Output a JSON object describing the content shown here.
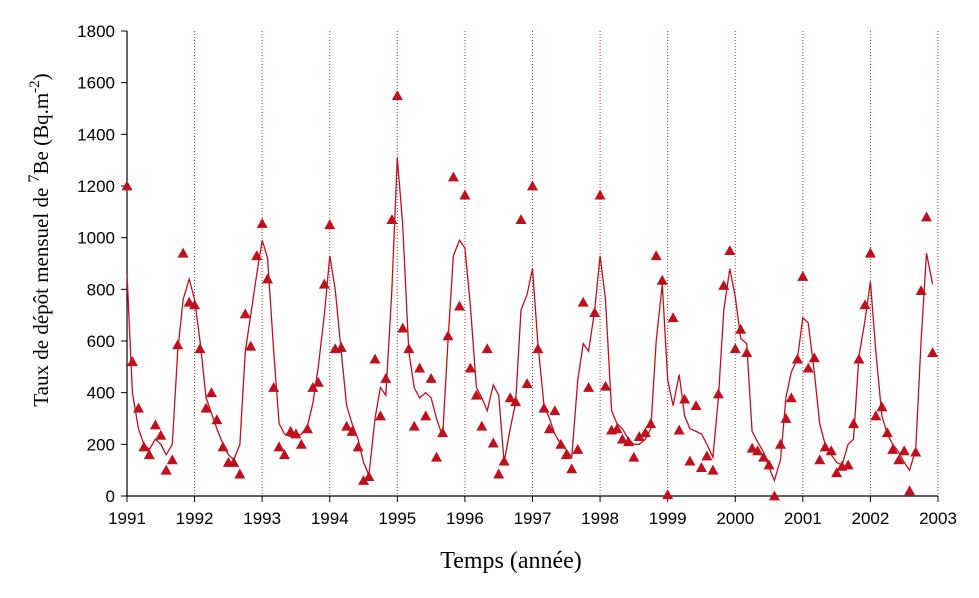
{
  "chart_data": {
    "type": "line",
    "title": "",
    "xlabel": "Temps (année)",
    "ylabel_prefix": "Taux de dépôt mensuel de ",
    "ylabel_sup": "7",
    "ylabel_main": "Be (Bq.m",
    "ylabel_exp": "-2",
    "ylabel_close": ")",
    "xlim": [
      1991,
      2003
    ],
    "ylim": [
      0,
      1800
    ],
    "x_ticks": [
      "1991",
      "1992",
      "1993",
      "1994",
      "1995",
      "1996",
      "1997",
      "1998",
      "1999",
      "2000",
      "2001",
      "2002",
      "2003"
    ],
    "y_ticks": [
      "0",
      "200",
      "400",
      "600",
      "800",
      "1000",
      "1200",
      "1400",
      "1600",
      "1800"
    ],
    "grid": "vertical dotted lines at each year",
    "legend": "none",
    "series": [
      {
        "kind": "markers",
        "marker": "triangle",
        "x": [
          1991.0,
          1991.08,
          1991.17,
          1991.25,
          1991.33,
          1991.42,
          1991.5,
          1991.58,
          1991.67,
          1991.75,
          1991.83,
          1991.92,
          1992.0,
          1992.08,
          1992.17,
          1992.25,
          1992.33,
          1992.42,
          1992.5,
          1992.58,
          1992.67,
          1992.75,
          1992.83,
          1992.92,
          1993.0,
          1993.08,
          1993.17,
          1993.25,
          1993.33,
          1993.42,
          1993.5,
          1993.58,
          1993.67,
          1993.75,
          1993.83,
          1993.92,
          1994.0,
          1994.08,
          1994.17,
          1994.25,
          1994.33,
          1994.42,
          1994.5,
          1994.58,
          1994.67,
          1994.75,
          1994.83,
          1994.92,
          1995.0,
          1995.08,
          1995.17,
          1995.25,
          1995.33,
          1995.42,
          1995.5,
          1995.58,
          1995.67,
          1995.75,
          1995.83,
          1995.92,
          1996.0,
          1996.08,
          1996.17,
          1996.25,
          1996.33,
          1996.42,
          1996.5,
          1996.58,
          1996.67,
          1996.75,
          1996.83,
          1996.92,
          1997.0,
          1997.08,
          1997.17,
          1997.25,
          1997.33,
          1997.42,
          1997.5,
          1997.58,
          1997.67,
          1997.75,
          1997.83,
          1997.92,
          1998.0,
          1998.08,
          1998.17,
          1998.25,
          1998.33,
          1998.42,
          1998.5,
          1998.58,
          1998.67,
          1998.75,
          1998.83,
          1998.92,
          1999.0,
          1999.08,
          1999.17,
          1999.25,
          1999.33,
          1999.42,
          1999.5,
          1999.58,
          1999.67,
          1999.75,
          1999.83,
          1999.92,
          2000.0,
          2000.08,
          2000.17,
          2000.25,
          2000.33,
          2000.42,
          2000.5,
          2000.58,
          2000.67,
          2000.75,
          2000.83,
          2000.92,
          2001.0,
          2001.08,
          2001.17,
          2001.25,
          2001.33,
          2001.42,
          2001.5,
          2001.58,
          2001.67,
          2001.75,
          2001.83,
          2001.92,
          2002.0,
          2002.08,
          2002.17,
          2002.25,
          2002.33,
          2002.42,
          2002.5,
          2002.58,
          2002.67,
          2002.75,
          2002.83,
          2002.92
        ],
        "y": [
          1200,
          520,
          340,
          190,
          160,
          275,
          235,
          100,
          140,
          585,
          940,
          750,
          740,
          570,
          340,
          400,
          295,
          190,
          130,
          130,
          85,
          705,
          580,
          930,
          1055,
          840,
          420,
          190,
          160,
          250,
          240,
          200,
          260,
          420,
          440,
          820,
          1050,
          570,
          575,
          270,
          250,
          190,
          60,
          75,
          530,
          310,
          455,
          1070,
          1550,
          650,
          570,
          270,
          495,
          310,
          455,
          150,
          245,
          620,
          1235,
          735,
          1165,
          495,
          390,
          270,
          570,
          205,
          85,
          135,
          380,
          365,
          1070,
          435,
          1200,
          570,
          340,
          260,
          330,
          200,
          160,
          105,
          180,
          750,
          420,
          710,
          1165,
          425,
          255,
          260,
          220,
          210,
          150,
          230,
          245,
          280,
          930,
          835,
          5,
          690,
          255,
          375,
          135,
          350,
          110,
          155,
          100,
          395,
          815,
          950,
          570,
          645,
          555,
          185,
          175,
          150,
          120,
          0,
          200,
          300,
          380,
          530,
          850,
          495,
          535,
          140,
          190,
          175,
          90,
          115,
          120,
          280,
          530,
          740,
          940,
          310,
          345,
          245,
          180,
          140,
          175,
          20,
          170,
          795,
          1080,
          555
        ]
      },
      {
        "kind": "line",
        "x": [
          1991.0,
          1991.08,
          1991.17,
          1991.25,
          1991.33,
          1991.42,
          1991.5,
          1991.58,
          1991.67,
          1991.75,
          1991.83,
          1991.92,
          1992.0,
          1992.08,
          1992.17,
          1992.25,
          1992.33,
          1992.42,
          1992.5,
          1992.58,
          1992.67,
          1992.75,
          1992.83,
          1992.92,
          1993.0,
          1993.08,
          1993.17,
          1993.25,
          1993.33,
          1993.42,
          1993.5,
          1993.58,
          1993.67,
          1993.75,
          1993.83,
          1993.92,
          1994.0,
          1994.08,
          1994.17,
          1994.25,
          1994.33,
          1994.42,
          1994.5,
          1994.58,
          1994.67,
          1994.75,
          1994.83,
          1994.92,
          1995.0,
          1995.08,
          1995.17,
          1995.25,
          1995.33,
          1995.42,
          1995.5,
          1995.58,
          1995.67,
          1995.75,
          1995.83,
          1995.92,
          1996.0,
          1996.08,
          1996.17,
          1996.25,
          1996.33,
          1996.42,
          1996.5,
          1996.58,
          1996.67,
          1996.75,
          1996.83,
          1996.92,
          1997.0,
          1997.08,
          1997.17,
          1997.25,
          1997.33,
          1997.42,
          1997.5,
          1997.58,
          1997.67,
          1997.75,
          1997.83,
          1997.92,
          1998.0,
          1998.08,
          1998.17,
          1998.25,
          1998.33,
          1998.42,
          1998.5,
          1998.58,
          1998.67,
          1998.75,
          1998.83,
          1998.92,
          1999.0,
          1999.08,
          1999.17,
          1999.25,
          1999.33,
          1999.42,
          1999.5,
          1999.58,
          1999.67,
          1999.75,
          1999.83,
          1999.92,
          2000.0,
          2000.08,
          2000.17,
          2000.25,
          2000.33,
          2000.42,
          2000.5,
          2000.58,
          2000.67,
          2000.75,
          2000.83,
          2000.92,
          2001.0,
          2001.08,
          2001.17,
          2001.25,
          2001.33,
          2001.42,
          2001.5,
          2001.58,
          2001.67,
          2001.75,
          2001.83,
          2001.92,
          2002.0,
          2002.08,
          2002.17,
          2002.25,
          2002.33,
          2002.42,
          2002.5,
          2002.58,
          2002.67,
          2002.75,
          2002.83,
          2002.92
        ],
        "y": [
          860,
          400,
          260,
          200,
          180,
          220,
          200,
          160,
          200,
          560,
          760,
          840,
          760,
          600,
          380,
          320,
          260,
          200,
          160,
          140,
          200,
          560,
          700,
          860,
          990,
          920,
          560,
          280,
          240,
          230,
          230,
          240,
          270,
          360,
          500,
          700,
          930,
          800,
          560,
          350,
          280,
          220,
          130,
          80,
          300,
          420,
          390,
          800,
          1310,
          1050,
          560,
          420,
          380,
          400,
          380,
          300,
          230,
          600,
          930,
          990,
          960,
          740,
          420,
          380,
          330,
          430,
          390,
          130,
          260,
          360,
          720,
          780,
          880,
          590,
          350,
          300,
          240,
          200,
          180,
          150,
          450,
          590,
          560,
          720,
          930,
          760,
          330,
          280,
          260,
          220,
          200,
          200,
          220,
          260,
          600,
          820,
          450,
          350,
          470,
          310,
          260,
          250,
          240,
          200,
          150,
          380,
          720,
          880,
          770,
          610,
          590,
          250,
          210,
          170,
          110,
          60,
          140,
          380,
          480,
          530,
          690,
          670,
          480,
          280,
          200,
          160,
          130,
          120,
          200,
          220,
          540,
          680,
          830,
          560,
          310,
          240,
          200,
          170,
          130,
          100,
          180,
          600,
          940,
          820
        ]
      }
    ]
  },
  "colors": {
    "series": "#c0101e",
    "axis": "#000000",
    "grid": "#a83030"
  }
}
